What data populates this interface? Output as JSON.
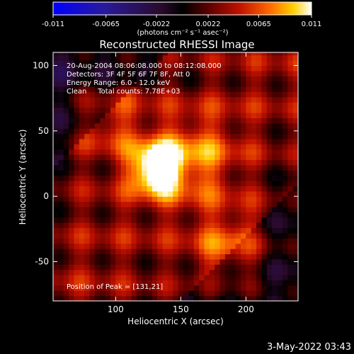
{
  "chart_data": {
    "type": "heatmap",
    "title": "Reconstructed RHESSI Image",
    "xlabel": "Heliocentric X (arcsec)",
    "ylabel": "Heliocentric Y (arcsec)",
    "xlim": [
      52,
      240
    ],
    "ylim": [
      -80,
      110
    ],
    "x_ticks": [
      100,
      150,
      200
    ],
    "y_ticks": [
      -50,
      0,
      50,
      100
    ],
    "colorbar": {
      "range": [
        -0.011,
        0.011
      ],
      "ticks": [
        "-0.011",
        "-0.0065",
        "-0.0022",
        "0.0022",
        "0.0065",
        "0.011"
      ],
      "unit_label": "(photons cm⁻² s⁻¹ asec⁻²)"
    },
    "annotations": [
      "20-Aug-2004 08:06:08.000 to 08:12:08.000",
      "Detectors: 3F 4F 5F 6F 7F 8F, Att 0",
      "Energy Range: 6.0 - 12.0 keV",
      "Clean     Total counts: 7.78E+03"
    ],
    "peak_label": "Position of Peak = [131,21]",
    "peak": {
      "x": 131,
      "y": 21,
      "value": 0.011
    },
    "secondary_sources": [
      {
        "x": 190,
        "y": -40,
        "value": 0.0055
      },
      {
        "x": 95,
        "y": 60,
        "value": 0.004
      },
      {
        "x": 160,
        "y": 30,
        "value": 0.0045
      }
    ],
    "timestamp": "3-May-2022 03:43"
  }
}
